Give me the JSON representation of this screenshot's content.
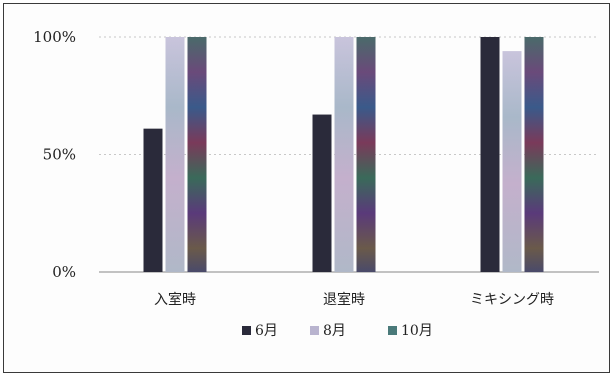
{
  "chart_data": {
    "type": "bar",
    "categories": [
      "入室時",
      "退室時",
      "ミキシング時"
    ],
    "series": [
      {
        "name": "6月",
        "values": [
          61,
          67,
          100
        ],
        "color": "#2a2a3a"
      },
      {
        "name": "8月",
        "values": [
          100,
          100,
          94
        ],
        "color": "#b9b4cf"
      },
      {
        "name": "10月",
        "values": [
          100,
          100,
          100
        ],
        "color": "#5a4a7a"
      }
    ],
    "ylim": [
      0,
      100
    ],
    "yticks": [
      0,
      50,
      100
    ],
    "ytick_labels": [
      "0%",
      "50%",
      "100%"
    ],
    "grid": true,
    "legend_position": "bottom"
  }
}
